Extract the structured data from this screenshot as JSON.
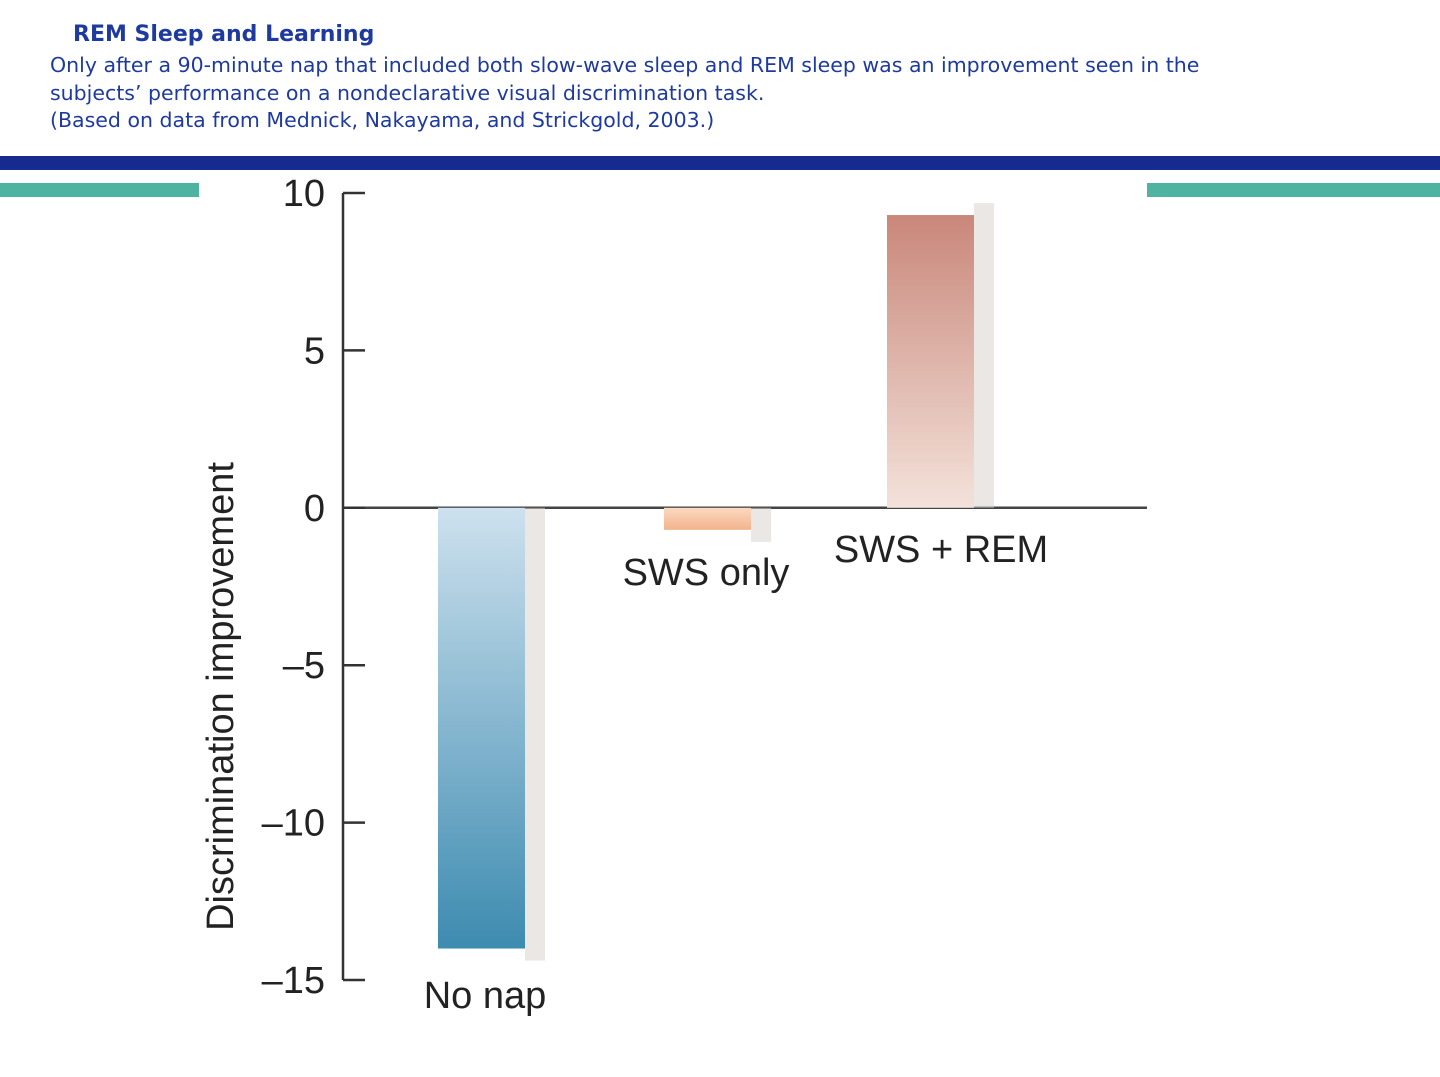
{
  "header": {
    "title": "REM Sleep and Learning",
    "caption_lines": [
      "Only after a 90-minute nap that included both slow-wave sleep and REM sleep was an improvement seen in the",
      "subjects’ performance on a nondeclarative visual discrimination task.",
      "(Based on data from Mednick, Nakayama, and Strickgold, 2003.)"
    ]
  },
  "colors": {
    "text_blue": "#1f3a9e",
    "rule_navy": "#152b8f",
    "rule_teal": "#4fb3a1",
    "no_nap": "#3d8bb0",
    "sws_only": "#f2b48c",
    "sws_rem": "#c9877a"
  },
  "chart_data": {
    "type": "bar",
    "categories": [
      "No nap",
      "SWS only",
      "SWS + REM"
    ],
    "values": [
      -14,
      -0.7,
      9.3
    ],
    "ylabel": "Discrimination improvement",
    "ylim": [
      -15,
      10
    ],
    "yticks": [
      10,
      5,
      0,
      -5,
      -10,
      -15
    ],
    "ytick_labels": [
      "10",
      "5",
      "0",
      "–5",
      "–10",
      "–15"
    ],
    "grid": false,
    "legend": "none"
  }
}
